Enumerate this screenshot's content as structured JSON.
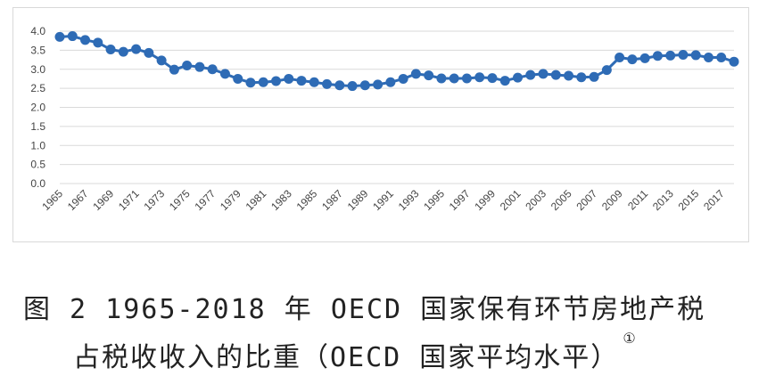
{
  "chart_data": {
    "type": "line",
    "title": "",
    "xlabel": "",
    "ylabel": "",
    "ylim": [
      0,
      4.0
    ],
    "yticks": [
      "0.0",
      "0.5",
      "1.0",
      "1.5",
      "2.0",
      "2.5",
      "3.0",
      "3.5",
      "4.0"
    ],
    "grid": true,
    "legend": "none",
    "x": [
      1965,
      1966,
      1967,
      1968,
      1969,
      1970,
      1971,
      1972,
      1973,
      1974,
      1975,
      1976,
      1977,
      1978,
      1979,
      1980,
      1981,
      1982,
      1983,
      1984,
      1985,
      1986,
      1987,
      1988,
      1989,
      1990,
      1991,
      1992,
      1993,
      1994,
      1995,
      1996,
      1997,
      1998,
      1999,
      2000,
      2001,
      2002,
      2003,
      2004,
      2005,
      2006,
      2007,
      2008,
      2009,
      2010,
      2011,
      2012,
      2013,
      2014,
      2015,
      2016,
      2017,
      2018
    ],
    "xtick_labels": [
      "1965",
      "1967",
      "1969",
      "1971",
      "1973",
      "1975",
      "1977",
      "1979",
      "1981",
      "1983",
      "1985",
      "1987",
      "1989",
      "1991",
      "1993",
      "1995",
      "1997",
      "1999",
      "2001",
      "2003",
      "2005",
      "2007",
      "2009",
      "2011",
      "2013",
      "2015",
      "2017"
    ],
    "series": [
      {
        "color": "#2e6bb5",
        "values": [
          3.85,
          3.87,
          3.77,
          3.7,
          3.52,
          3.46,
          3.53,
          3.43,
          3.23,
          2.99,
          3.1,
          3.06,
          3.0,
          2.88,
          2.75,
          2.65,
          2.66,
          2.69,
          2.75,
          2.7,
          2.66,
          2.61,
          2.58,
          2.56,
          2.58,
          2.6,
          2.66,
          2.75,
          2.88,
          2.84,
          2.76,
          2.76,
          2.76,
          2.79,
          2.77,
          2.7,
          2.78,
          2.85,
          2.88,
          2.85,
          2.83,
          2.79,
          2.8,
          2.98,
          3.31,
          3.26,
          3.29,
          3.35,
          3.36,
          3.38,
          3.37,
          3.31,
          3.31,
          3.2
        ]
      }
    ]
  },
  "caption": {
    "line1": "图 2 1965-2018 年 OECD 国家保有环节房地产税",
    "line2": "占税收收入的比重（OECD 国家平均水平）",
    "footnote_mark": "①"
  }
}
